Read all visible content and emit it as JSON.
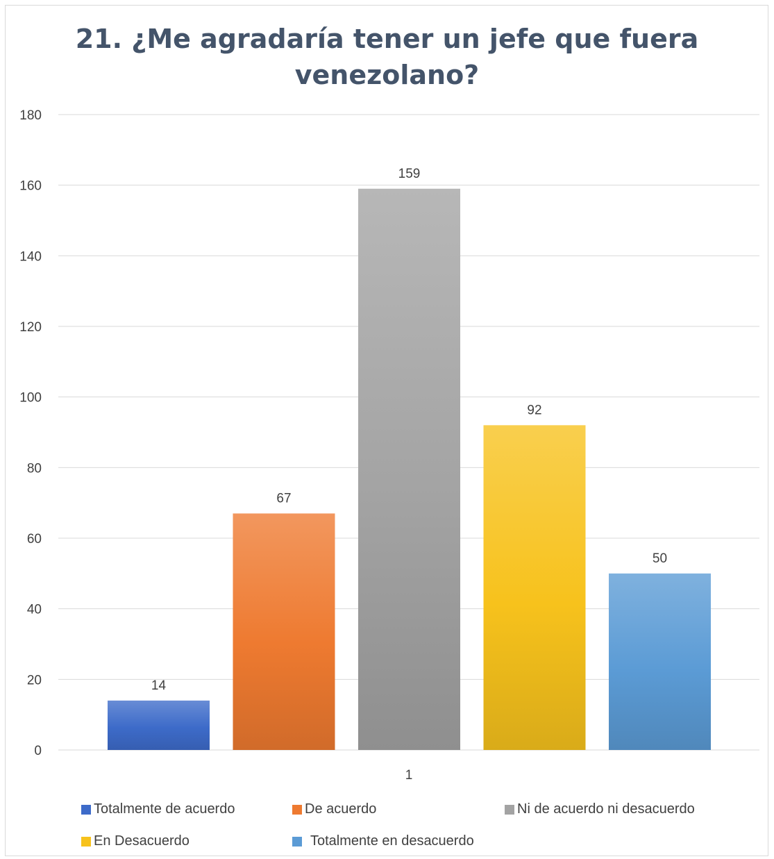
{
  "chart_data": {
    "type": "bar",
    "title_lines": [
      "21. ¿Me agradaría tener un jefe que fuera",
      "venezolano?"
    ],
    "categories": [
      "1"
    ],
    "series": [
      {
        "name": "Totalmente de acuerdo",
        "values": [
          14
        ],
        "color": "#3d6bc9"
      },
      {
        "name": "De acuerdo",
        "values": [
          67
        ],
        "color": "#ee7a30"
      },
      {
        "name": "Ni de acuerdo ni desacuerdo",
        "values": [
          159
        ],
        "color": "#a3a3a3"
      },
      {
        "name": "En Desacuerdo",
        "values": [
          92
        ],
        "color": "#f7c21c"
      },
      {
        "name": "Totalmente en desacuerdo",
        "values": [
          50
        ],
        "color": "#5b9bd5"
      }
    ],
    "ylim": [
      0,
      180
    ],
    "yticks": [
      0,
      20,
      40,
      60,
      80,
      100,
      120,
      140,
      160,
      180
    ],
    "grid": true,
    "legend": "bottom"
  }
}
